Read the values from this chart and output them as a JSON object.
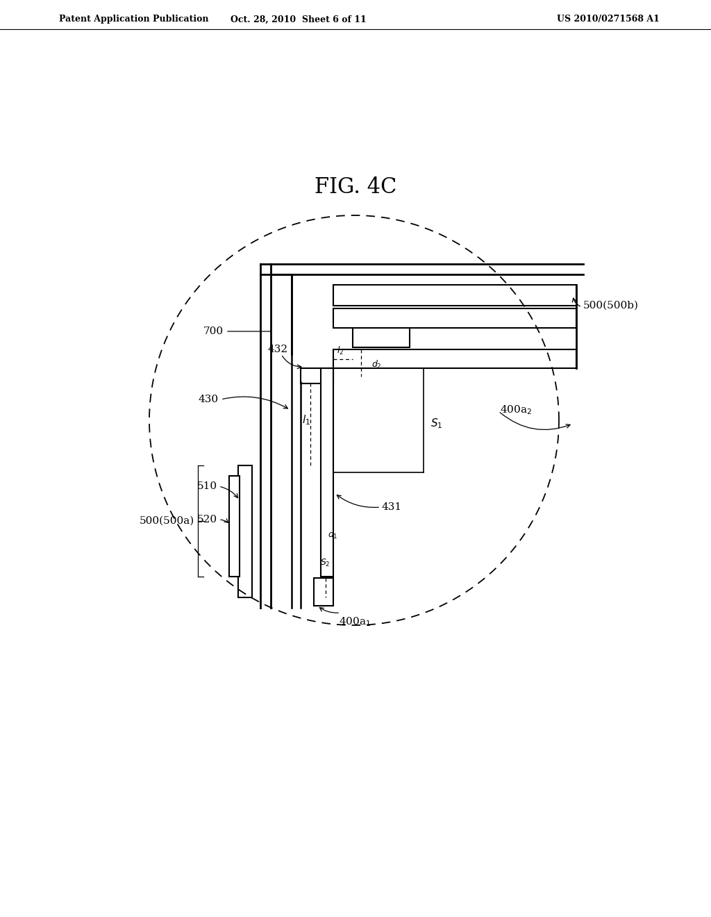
{
  "title": "FIG. 4C",
  "header_left": "Patent Application Publication",
  "header_mid": "Oct. 28, 2010  Sheet 6 of 11",
  "header_right": "US 2010/0271568 A1",
  "bg_color": "#ffffff",
  "line_color": "#000000",
  "fig_width": 10.24,
  "fig_height": 13.2,
  "dpi": 100
}
